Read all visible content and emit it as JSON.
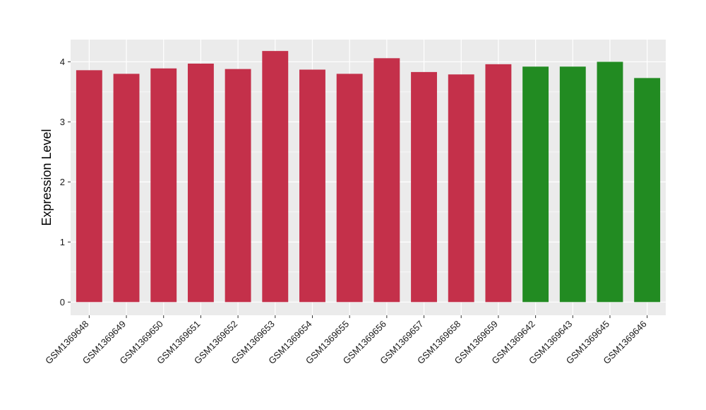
{
  "chart_data": {
    "type": "bar",
    "categories": [
      "GSM1369648",
      "GSM1369649",
      "GSM1369650",
      "GSM1369651",
      "GSM1369652",
      "GSM1369653",
      "GSM1369654",
      "GSM1369655",
      "GSM1369656",
      "GSM1369657",
      "GSM1369658",
      "GSM1369659",
      "GSM1369642",
      "GSM1369643",
      "GSM1369645",
      "GSM1369646"
    ],
    "values": [
      3.86,
      3.8,
      3.89,
      3.97,
      3.88,
      4.18,
      3.87,
      3.8,
      4.06,
      3.83,
      3.79,
      3.96,
      3.92,
      3.92,
      4.0,
      3.73
    ],
    "bar_colors": [
      "#c4304a",
      "#c4304a",
      "#c4304a",
      "#c4304a",
      "#c4304a",
      "#c4304a",
      "#c4304a",
      "#c4304a",
      "#c4304a",
      "#c4304a",
      "#c4304a",
      "#c4304a",
      "#228b22",
      "#228b22",
      "#228b22",
      "#228b22"
    ],
    "title": "",
    "xlabel": "",
    "ylabel": "Expression Level",
    "ylim": [
      -0.22,
      4.37
    ],
    "yticks": [
      0,
      1,
      2,
      3,
      4
    ],
    "grid": true,
    "legend": "none",
    "colors": {
      "panel_background": "#ebebeb",
      "grid": "#ffffff",
      "red_group": "#c4304a",
      "green_group": "#228b22"
    }
  }
}
